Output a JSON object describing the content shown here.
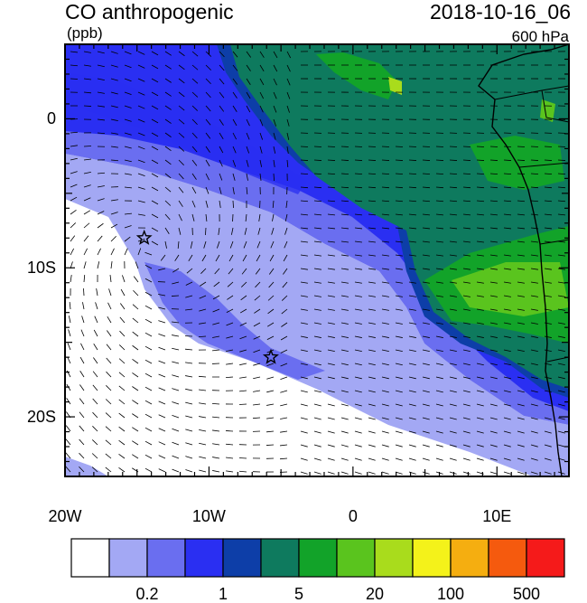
{
  "header": {
    "left_title": "CO anthropogenic",
    "left_units": "(ppb)",
    "right_title": "2018-10-16_06",
    "right_level": "600 hPa"
  },
  "map": {
    "lon_range": [
      -20,
      15
    ],
    "lat_range": [
      -24,
      5
    ],
    "x_ticks": [
      {
        "label": "20W",
        "lon": -20
      },
      {
        "label": "10W",
        "lon": -10
      },
      {
        "label": "0",
        "lon": 0
      },
      {
        "label": "10E",
        "lon": 10
      }
    ],
    "y_ticks": [
      {
        "label": "0",
        "lat": 0
      },
      {
        "label": "10S",
        "lat": -10
      },
      {
        "label": "20S",
        "lat": -20
      }
    ],
    "markers": [
      {
        "name": "star-marker",
        "lon": -14.5,
        "lat": -8
      },
      {
        "name": "star-marker",
        "lon": -5.7,
        "lat": -16
      }
    ],
    "wind_vectors": "present"
  },
  "colorbar": {
    "colors": [
      "#ffffff",
      "#a3a8f4",
      "#6a6ef0",
      "#2a2ff2",
      "#0d3ea8",
      "#0e7a5e",
      "#12a329",
      "#5ac41e",
      "#a9dc1c",
      "#f4f21a",
      "#f5ae10",
      "#f55a0e",
      "#f51a1a"
    ],
    "labels": [
      {
        "text": "0.2",
        "boundary": 2
      },
      {
        "text": "1",
        "boundary": 4
      },
      {
        "text": "5",
        "boundary": 6
      },
      {
        "text": "20",
        "boundary": 8
      },
      {
        "text": "100",
        "boundary": 10
      },
      {
        "text": "500",
        "boundary": 12
      }
    ]
  }
}
